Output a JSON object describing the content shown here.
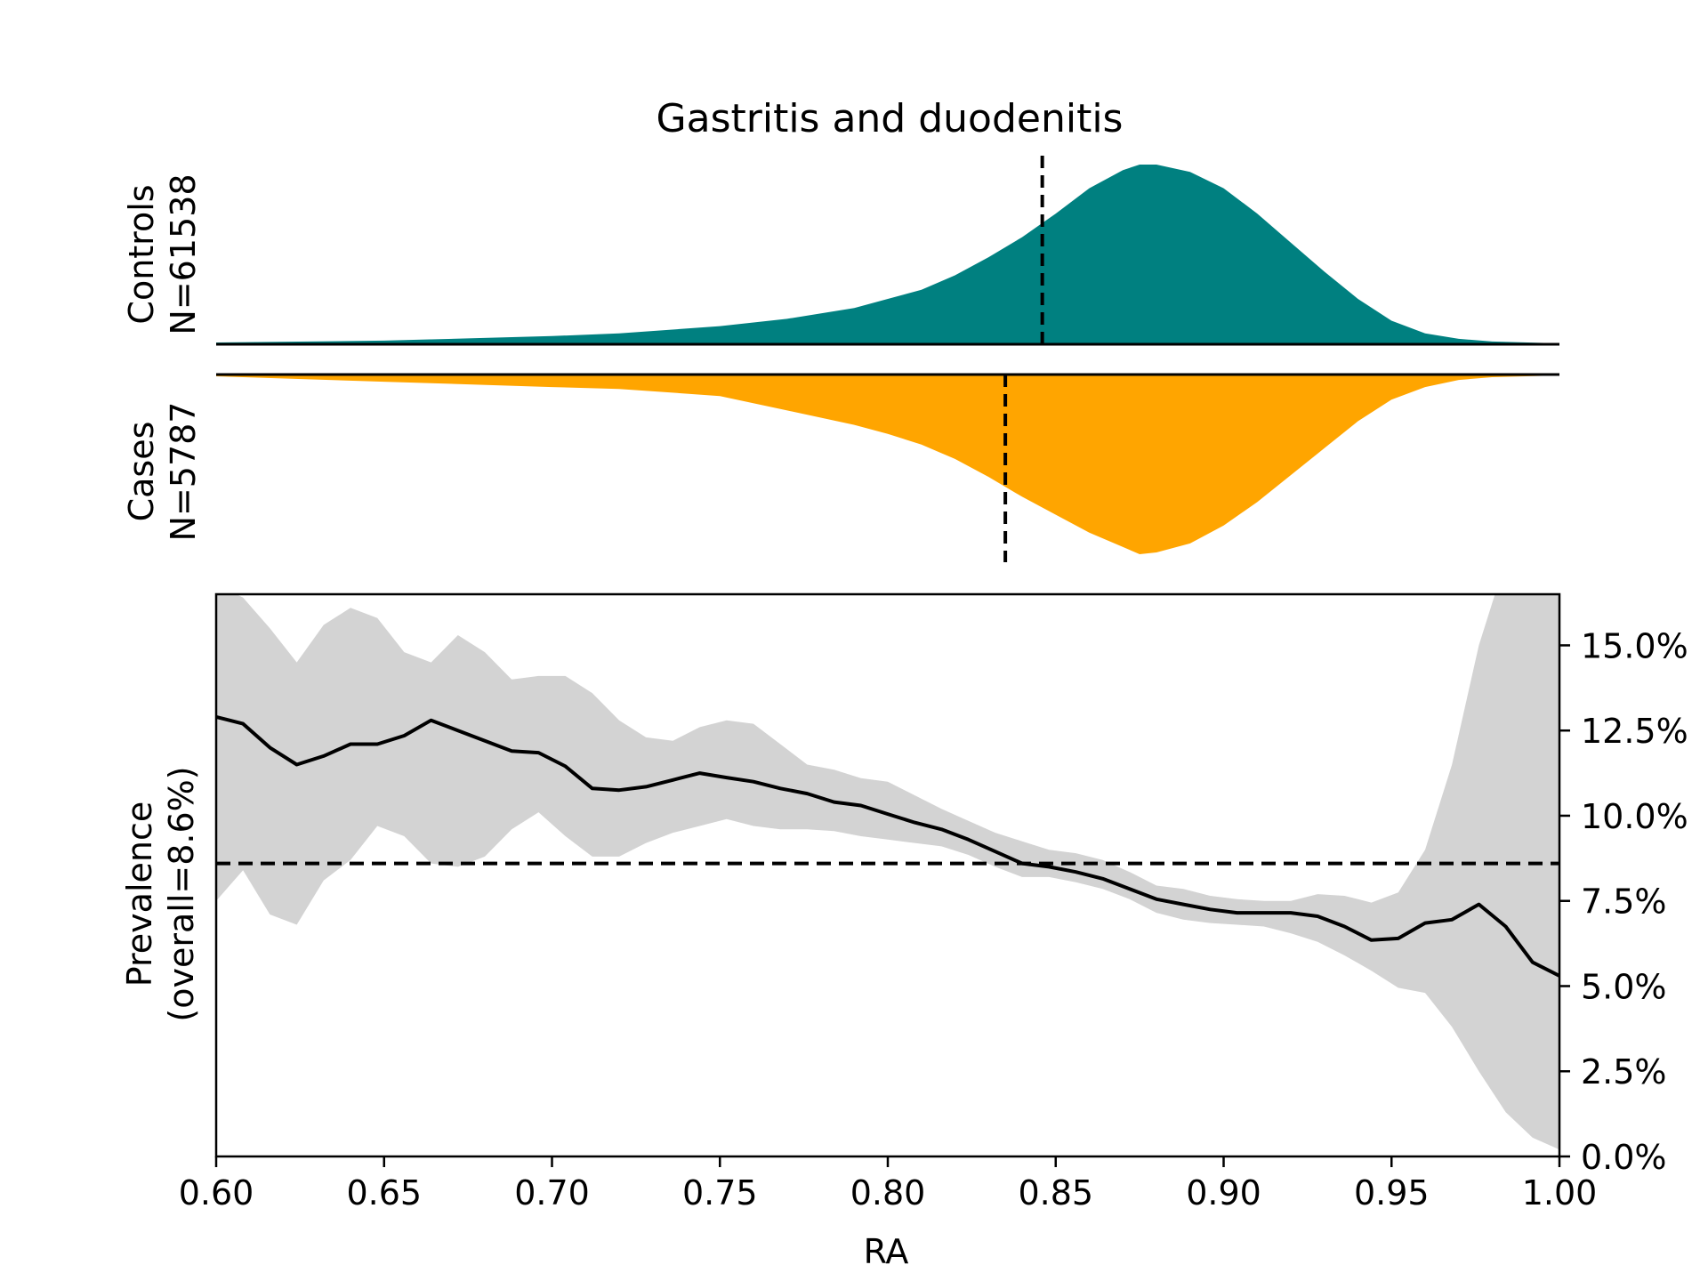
{
  "chart_data": {
    "type": "area",
    "title": "Gastritis and duodenitis",
    "colors": {
      "controls": "#008080",
      "cases": "#ffa500",
      "ci_band": "#d3d3d3",
      "line": "#000000"
    },
    "density": {
      "x": [
        0.6,
        0.65,
        0.7,
        0.72,
        0.75,
        0.77,
        0.79,
        0.8,
        0.81,
        0.82,
        0.83,
        0.84,
        0.85,
        0.86,
        0.87,
        0.875,
        0.88,
        0.89,
        0.9,
        0.91,
        0.92,
        0.93,
        0.94,
        0.95,
        0.96,
        0.97,
        0.98,
        1.0
      ],
      "series": [
        {
          "name": "Controls\nN=61538",
          "label_line1": "Controls",
          "label_line2": "N=61538",
          "values": [
            0.01,
            0.02,
            0.045,
            0.06,
            0.1,
            0.14,
            0.2,
            0.25,
            0.3,
            0.38,
            0.48,
            0.59,
            0.72,
            0.86,
            0.96,
            0.99,
            0.99,
            0.95,
            0.86,
            0.72,
            0.56,
            0.4,
            0.25,
            0.13,
            0.06,
            0.03,
            0.015,
            0.005
          ],
          "mean": 0.846
        },
        {
          "name": "Cases\nN=5787",
          "label_line1": "Cases",
          "label_line2": "N=5787",
          "values": [
            0.01,
            0.04,
            0.07,
            0.08,
            0.12,
            0.2,
            0.28,
            0.33,
            0.39,
            0.47,
            0.57,
            0.68,
            0.78,
            0.88,
            0.96,
            1.0,
            0.99,
            0.94,
            0.84,
            0.71,
            0.56,
            0.41,
            0.26,
            0.14,
            0.07,
            0.03,
            0.015,
            0.005
          ],
          "mean": 0.835
        }
      ]
    },
    "prevalence": {
      "x": [
        0.6,
        0.608,
        0.616,
        0.624,
        0.632,
        0.64,
        0.648,
        0.656,
        0.664,
        0.672,
        0.68,
        0.688,
        0.696,
        0.704,
        0.712,
        0.72,
        0.728,
        0.736,
        0.744,
        0.752,
        0.76,
        0.768,
        0.776,
        0.784,
        0.792,
        0.8,
        0.808,
        0.816,
        0.824,
        0.832,
        0.84,
        0.848,
        0.856,
        0.864,
        0.872,
        0.88,
        0.888,
        0.896,
        0.904,
        0.912,
        0.92,
        0.928,
        0.936,
        0.944,
        0.952,
        0.96,
        0.968,
        0.976,
        0.984,
        0.992,
        1.0
      ],
      "values": [
        12.9,
        12.7,
        12.0,
        11.5,
        11.75,
        12.1,
        12.1,
        12.35,
        12.8,
        12.5,
        12.2,
        11.9,
        11.85,
        11.45,
        10.8,
        10.75,
        10.85,
        11.05,
        11.25,
        11.12,
        11.0,
        10.8,
        10.65,
        10.4,
        10.3,
        10.05,
        9.8,
        9.6,
        9.3,
        8.95,
        8.6,
        8.5,
        8.35,
        8.15,
        7.85,
        7.55,
        7.4,
        7.25,
        7.15,
        7.15,
        7.15,
        7.05,
        6.75,
        6.35,
        6.4,
        6.85,
        6.95,
        7.4,
        6.75,
        5.7,
        5.3
      ],
      "ci_upper": [
        16.8,
        16.4,
        15.5,
        14.5,
        15.6,
        16.1,
        15.8,
        14.8,
        14.5,
        15.3,
        14.8,
        14.0,
        14.1,
        14.1,
        13.6,
        12.8,
        12.3,
        12.2,
        12.6,
        12.8,
        12.7,
        12.1,
        11.5,
        11.35,
        11.1,
        11.0,
        10.6,
        10.2,
        9.85,
        9.5,
        9.25,
        9.0,
        8.9,
        8.7,
        8.35,
        7.95,
        7.85,
        7.65,
        7.55,
        7.5,
        7.5,
        7.7,
        7.65,
        7.45,
        7.75,
        9.0,
        11.5,
        15.0,
        17.5,
        18.0,
        18.0
      ],
      "ci_lower": [
        7.5,
        8.4,
        7.1,
        6.8,
        8.1,
        8.7,
        9.7,
        9.4,
        8.6,
        8.5,
        8.8,
        9.6,
        10.1,
        9.4,
        8.8,
        8.8,
        9.2,
        9.5,
        9.7,
        9.9,
        9.7,
        9.6,
        9.6,
        9.55,
        9.4,
        9.3,
        9.2,
        9.1,
        8.85,
        8.5,
        8.2,
        8.2,
        8.05,
        7.85,
        7.55,
        7.15,
        6.95,
        6.85,
        6.8,
        6.75,
        6.55,
        6.3,
        5.9,
        5.45,
        4.95,
        4.8,
        3.8,
        2.5,
        1.3,
        0.55,
        0.2
      ],
      "overall": 8.6,
      "xlabel": "RA",
      "ylabel_line1": "Prevalence",
      "ylabel_line2": "(overall=8.6%)",
      "xlim": [
        0.6,
        1.0
      ],
      "ylim": [
        0,
        16.5
      ],
      "xticks": [
        0.6,
        0.65,
        0.7,
        0.75,
        0.8,
        0.85,
        0.9,
        0.95,
        1.0
      ],
      "xtick_labels": [
        "0.60",
        "0.65",
        "0.70",
        "0.75",
        "0.80",
        "0.85",
        "0.90",
        "0.95",
        "1.00"
      ],
      "yticks": [
        0,
        2.5,
        5.0,
        7.5,
        10.0,
        12.5,
        15.0
      ],
      "ytick_labels": [
        "0.0%",
        "2.5%",
        "5.0%",
        "7.5%",
        "10.0%",
        "12.5%",
        "15.0%"
      ],
      "yaxis_side": "right"
    }
  }
}
